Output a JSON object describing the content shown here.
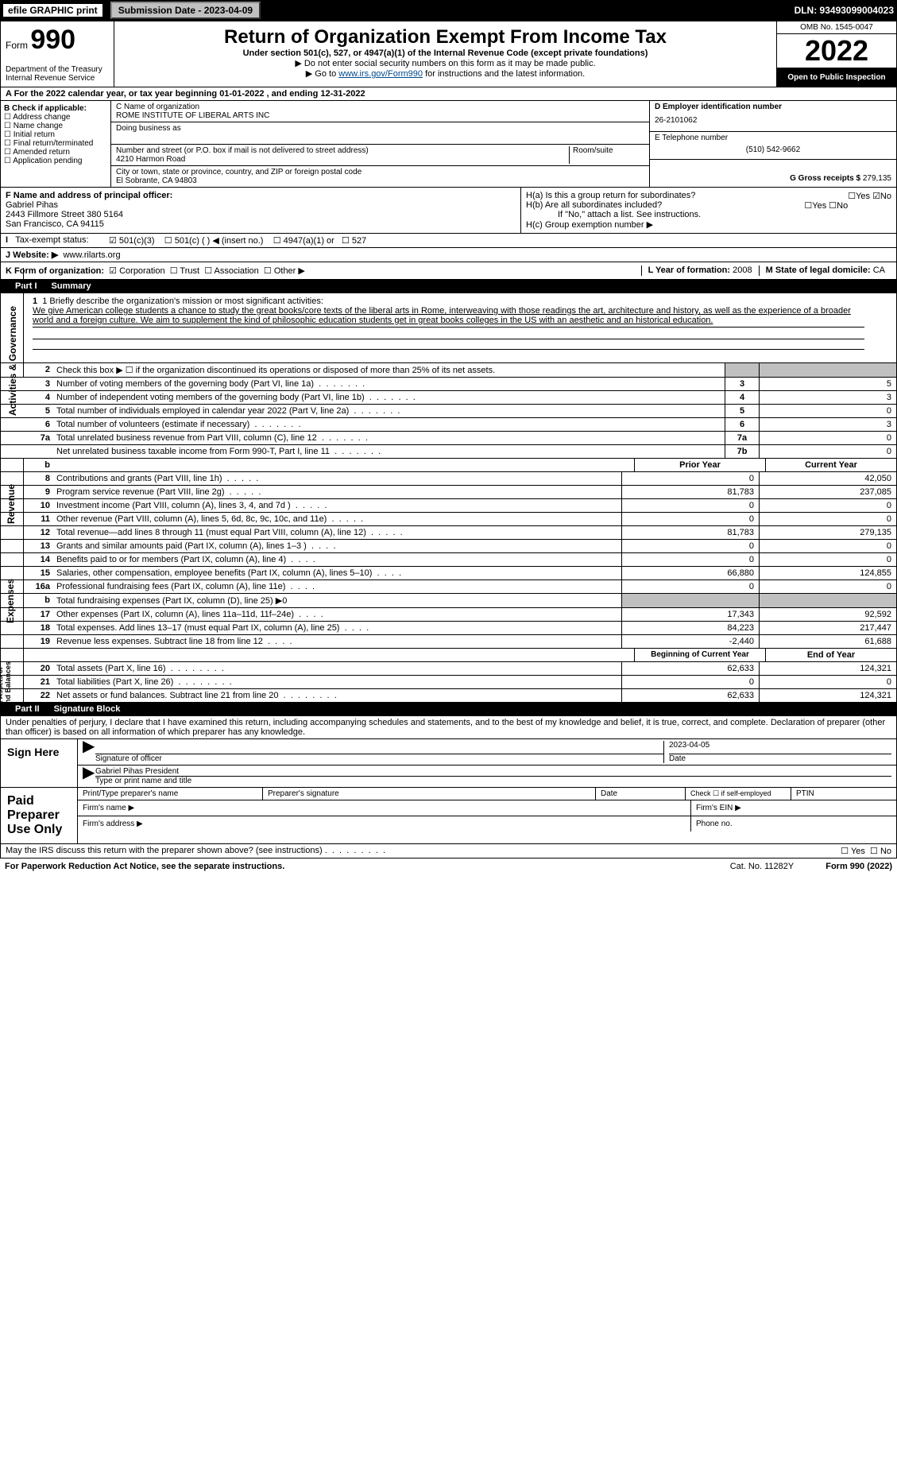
{
  "top": {
    "efile": "efile GRAPHIC print",
    "submission_btn": "Submission Date - 2023-04-09",
    "dln": "DLN: 93493099004023"
  },
  "header": {
    "form_word": "Form",
    "form_num": "990",
    "dept": "Department of the Treasury\nInternal Revenue Service",
    "title": "Return of Organization Exempt From Income Tax",
    "sub1": "Under section 501(c), 527, or 4947(a)(1) of the Internal Revenue Code (except private foundations)",
    "sub2": "▶ Do not enter social security numbers on this form as it may be made public.",
    "sub3a": "▶ Go to ",
    "sub3_link": "www.irs.gov/Form990",
    "sub3b": " for instructions and the latest information.",
    "omb": "OMB No. 1545-0047",
    "year": "2022",
    "open": "Open to Public Inspection"
  },
  "rowA": "A For the 2022 calendar year, or tax year beginning 01-01-2022    , and ending 12-31-2022",
  "colB": {
    "hdr": "B Check if applicable:",
    "opts": [
      "Address change",
      "Name change",
      "Initial return",
      "Final return/terminated",
      "Amended return",
      "Application pending"
    ]
  },
  "colC": {
    "name_lbl": "C Name of organization",
    "name": "ROME INSTITUTE OF LIBERAL ARTS INC",
    "dba_lbl": "Doing business as",
    "dba": "",
    "addr_lbl": "Number and street (or P.O. box if mail is not delivered to street address)",
    "room_lbl": "Room/suite",
    "addr": "4210 Harmon Road",
    "city_lbl": "City or town, state or province, country, and ZIP or foreign postal code",
    "city": "El Sobrante, CA  94803"
  },
  "colDE": {
    "d_lbl": "D Employer identification number",
    "ein": "26-2101062",
    "e_lbl": "E Telephone number",
    "phone": "(510) 542-9662",
    "g_lbl": "G Gross receipts $",
    "g_val": "279,135"
  },
  "rowF": {
    "lbl": "F Name and address of principal officer:",
    "name": "Gabriel Pihas",
    "addr1": "2443 Fillmore Street 380 5164",
    "addr2": "San Francisco, CA  94115"
  },
  "rowH": {
    "ha": "H(a)  Is this a group return for subordinates?",
    "hb": "H(b)  Are all subordinates included?",
    "hb2": "If \"No,\" attach a list. See instructions.",
    "hc": "H(c)  Group exemption number ▶"
  },
  "rowI": {
    "lbl": "Tax-exempt status:",
    "o1": "501(c)(3)",
    "o2": "501(c) (   ) ◀ (insert no.)",
    "o3": "4947(a)(1) or",
    "o4": "527"
  },
  "rowJ": {
    "lbl": "J   Website: ▶",
    "val": "www.rilarts.org"
  },
  "rowK": {
    "lbl": "K Form of organization:",
    "opts": [
      "Corporation",
      "Trust",
      "Association",
      "Other ▶"
    ],
    "l_lbl": "L Year of formation:",
    "l_val": "2008",
    "m_lbl": "M State of legal domicile:",
    "m_val": "CA"
  },
  "part1": {
    "num": "Part I",
    "title": "Summary",
    "line1_lbl": "1  Briefly describe the organization's mission or most significant activities:",
    "mission": "We give American college students a chance to study the great books/core texts of the liberal arts in Rome, interweaving with those readings the art, architecture and history, as well as the experience of a broader world and a foreign culture. We aim to supplement the kind of philosophic education students get in great books colleges in the US with an aesthetic and an historical education.",
    "line2": "Check this box ▶ ☐  if the organization discontinued its operations or disposed of more than 25% of its net assets.",
    "rows_a": [
      {
        "n": "3",
        "d": "Number of voting members of the governing body (Part VI, line 1a)",
        "box": "3",
        "v": "5"
      },
      {
        "n": "4",
        "d": "Number of independent voting members of the governing body (Part VI, line 1b)",
        "box": "4",
        "v": "3"
      },
      {
        "n": "5",
        "d": "Total number of individuals employed in calendar year 2022 (Part V, line 2a)",
        "box": "5",
        "v": "0"
      },
      {
        "n": "6",
        "d": "Total number of volunteers (estimate if necessary)",
        "box": "6",
        "v": "3"
      },
      {
        "n": "7a",
        "d": "Total unrelated business revenue from Part VIII, column (C), line 12",
        "box": "7a",
        "v": "0"
      },
      {
        "n": "",
        "d": "Net unrelated business taxable income from Form 990-T, Part I, line 11",
        "box": "7b",
        "v": "0"
      }
    ],
    "hdr_prior": "Prior Year",
    "hdr_curr": "Current Year",
    "rows_rev": [
      {
        "n": "8",
        "d": "Contributions and grants (Part VIII, line 1h)",
        "p": "0",
        "c": "42,050"
      },
      {
        "n": "9",
        "d": "Program service revenue (Part VIII, line 2g)",
        "p": "81,783",
        "c": "237,085"
      },
      {
        "n": "10",
        "d": "Investment income (Part VIII, column (A), lines 3, 4, and 7d )",
        "p": "0",
        "c": "0"
      },
      {
        "n": "11",
        "d": "Other revenue (Part VIII, column (A), lines 5, 6d, 8c, 9c, 10c, and 11e)",
        "p": "0",
        "c": "0"
      },
      {
        "n": "12",
        "d": "Total revenue—add lines 8 through 11 (must equal Part VIII, column (A), line 12)",
        "p": "81,783",
        "c": "279,135"
      }
    ],
    "rows_exp": [
      {
        "n": "13",
        "d": "Grants and similar amounts paid (Part IX, column (A), lines 1–3 )",
        "p": "0",
        "c": "0"
      },
      {
        "n": "14",
        "d": "Benefits paid to or for members (Part IX, column (A), line 4)",
        "p": "0",
        "c": "0"
      },
      {
        "n": "15",
        "d": "Salaries, other compensation, employee benefits (Part IX, column (A), lines 5–10)",
        "p": "66,880",
        "c": "124,855"
      },
      {
        "n": "16a",
        "d": "Professional fundraising fees (Part IX, column (A), line 11e)",
        "p": "0",
        "c": "0"
      },
      {
        "n": "b",
        "d": "Total fundraising expenses (Part IX, column (D), line 25) ▶0",
        "p": "",
        "c": "",
        "shaded": true
      },
      {
        "n": "17",
        "d": "Other expenses (Part IX, column (A), lines 11a–11d, 11f–24e)",
        "p": "17,343",
        "c": "92,592"
      },
      {
        "n": "18",
        "d": "Total expenses. Add lines 13–17 (must equal Part IX, column (A), line 25)",
        "p": "84,223",
        "c": "217,447"
      },
      {
        "n": "19",
        "d": "Revenue less expenses. Subtract line 18 from line 12",
        "p": "-2,440",
        "c": "61,688"
      }
    ],
    "hdr_beg": "Beginning of Current Year",
    "hdr_end": "End of Year",
    "rows_net": [
      {
        "n": "20",
        "d": "Total assets (Part X, line 16)",
        "p": "62,633",
        "c": "124,321"
      },
      {
        "n": "21",
        "d": "Total liabilities (Part X, line 26)",
        "p": "0",
        "c": "0"
      },
      {
        "n": "22",
        "d": "Net assets or fund balances. Subtract line 21 from line 20",
        "p": "62,633",
        "c": "124,321"
      }
    ],
    "side1": "Activities & Governance",
    "side2": "Revenue",
    "side3": "Expenses",
    "side4": "Net Assets or\nFund Balances"
  },
  "part2": {
    "num": "Part II",
    "title": "Signature Block",
    "decl": "Under penalties of perjury, I declare that I have examined this return, including accompanying schedules and statements, and to the best of my knowledge and belief, it is true, correct, and complete. Declaration of preparer (other than officer) is based on all information of which preparer has any knowledge.",
    "sign_here": "Sign Here",
    "sig_officer": "Signature of officer",
    "sig_date": "2023-04-05",
    "date_lbl": "Date",
    "name_title": "Gabriel Pihas  President",
    "type_lbl": "Type or print name and title",
    "paid": "Paid Preparer Use Only",
    "p1": "Print/Type preparer's name",
    "p2": "Preparer's signature",
    "p3": "Date",
    "p4": "Check ☐ if self-employed",
    "p5": "PTIN",
    "firm_name": "Firm's name   ▶",
    "firm_ein": "Firm's EIN ▶",
    "firm_addr": "Firm's address ▶",
    "phone_no": "Phone no.",
    "may_irs": "May the IRS discuss this return with the preparer shown above? (see instructions)",
    "yes": "Yes",
    "no": "No"
  },
  "footer": {
    "l": "For Paperwork Reduction Act Notice, see the separate instructions.",
    "m": "Cat. No. 11282Y",
    "r": "Form 990 (2022)"
  }
}
